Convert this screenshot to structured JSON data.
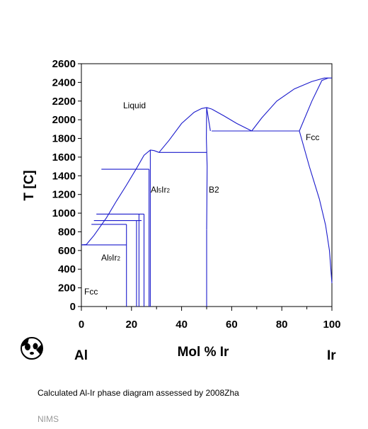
{
  "chart_data": {
    "type": "phase-diagram",
    "ylabel": "T [C]",
    "xlabel": "Mol % Ir",
    "left_element": "Al",
    "right_element": "Ir",
    "x_ticks": [
      "0",
      "20",
      "40",
      "60",
      "80",
      "100"
    ],
    "y_ticks": [
      "0",
      "200",
      "400",
      "600",
      "800",
      "1000",
      "1200",
      "1400",
      "1600",
      "1800",
      "2000",
      "2200",
      "2400",
      "2600"
    ],
    "xlim": [
      0,
      100
    ],
    "ylim": [
      0,
      2600
    ],
    "region_labels": {
      "liquid": "Liquid",
      "fcc_left": "Fcc",
      "fcc_right": "Fcc",
      "al9ir2": "Al9Ir2",
      "al5ir2": "Al5Ir2",
      "b2": "B2"
    },
    "line_color": "#1a1acc"
  },
  "caption": "Calculated Al-Ir phase diagram assessed by 2008Zha",
  "credit": "NIMS",
  "logo_icon": "panda-icon"
}
